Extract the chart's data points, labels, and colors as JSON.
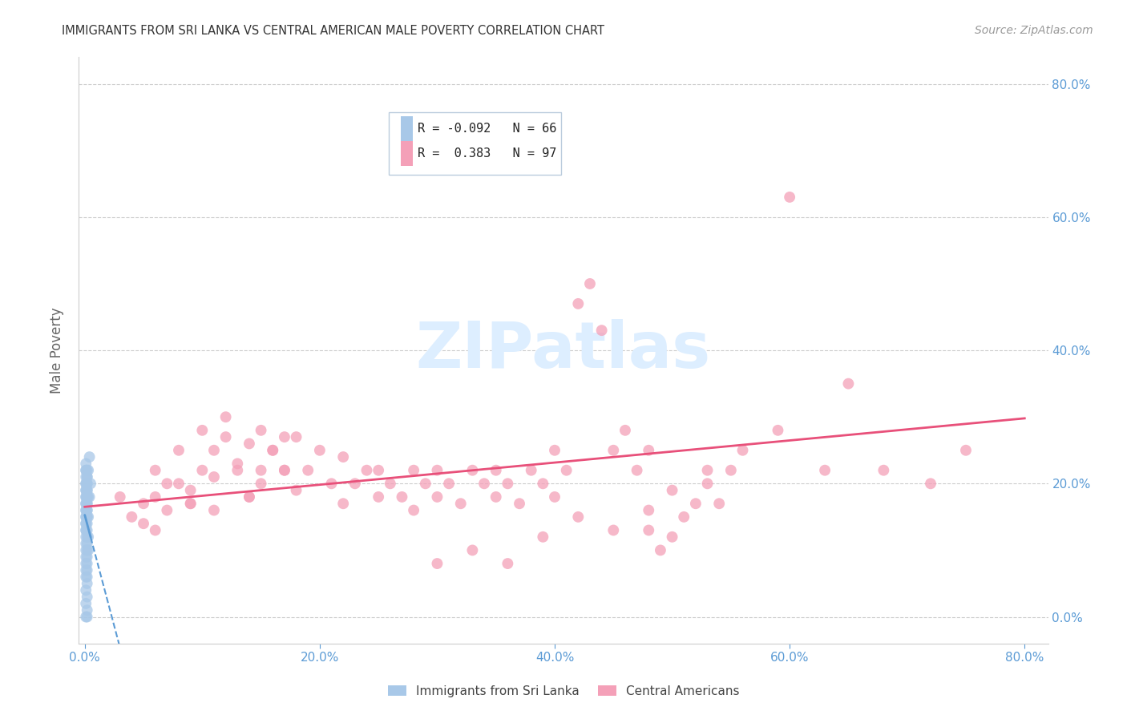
{
  "title": "IMMIGRANTS FROM SRI LANKA VS CENTRAL AMERICAN MALE POVERTY CORRELATION CHART",
  "source": "Source: ZipAtlas.com",
  "ylabel_left": "Male Poverty",
  "x_tick_labels": [
    "0.0%",
    "20.0%",
    "40.0%",
    "60.0%",
    "80.0%"
  ],
  "x_tick_vals": [
    0.0,
    0.2,
    0.4,
    0.6,
    0.8
  ],
  "y_tick_vals": [
    0.0,
    0.2,
    0.4,
    0.6,
    0.8
  ],
  "y_tick_labels": [
    "0.0%",
    "20.0%",
    "40.0%",
    "60.0%",
    "80.0%"
  ],
  "xlim": [
    -0.005,
    0.82
  ],
  "ylim": [
    -0.04,
    0.84
  ],
  "sri_lanka_color": "#a8c8e8",
  "central_american_color": "#f4a0b8",
  "sri_lanka_R": -0.092,
  "sri_lanka_N": 66,
  "central_american_R": 0.383,
  "central_american_N": 97,
  "sri_lanka_label": "Immigrants from Sri Lanka",
  "central_american_label": "Central Americans",
  "background_color": "#ffffff",
  "grid_color": "#cccccc",
  "tick_color": "#5b9bd5",
  "source_color": "#999999",
  "watermark_color": "#ddeeff",
  "sri_lanka_trend_color": "#5b9bd5",
  "central_american_trend_color": "#e8507a",
  "sri_lanka_points": [
    [
      0.001,
      0.22
    ],
    [
      0.001,
      0.2
    ],
    [
      0.001,
      0.19
    ],
    [
      0.002,
      0.21
    ],
    [
      0.001,
      0.18
    ],
    [
      0.002,
      0.2
    ],
    [
      0.001,
      0.17
    ],
    [
      0.002,
      0.19
    ],
    [
      0.001,
      0.16
    ],
    [
      0.002,
      0.18
    ],
    [
      0.001,
      0.15
    ],
    [
      0.002,
      0.17
    ],
    [
      0.001,
      0.14
    ],
    [
      0.002,
      0.16
    ],
    [
      0.001,
      0.13
    ],
    [
      0.002,
      0.15
    ],
    [
      0.001,
      0.22
    ],
    [
      0.002,
      0.21
    ],
    [
      0.001,
      0.23
    ],
    [
      0.002,
      0.22
    ],
    [
      0.001,
      0.2
    ],
    [
      0.002,
      0.19
    ],
    [
      0.001,
      0.18
    ],
    [
      0.002,
      0.17
    ],
    [
      0.001,
      0.16
    ],
    [
      0.002,
      0.15
    ],
    [
      0.001,
      0.14
    ],
    [
      0.002,
      0.13
    ],
    [
      0.001,
      0.12
    ],
    [
      0.002,
      0.11
    ],
    [
      0.001,
      0.1
    ],
    [
      0.002,
      0.09
    ],
    [
      0.001,
      0.08
    ],
    [
      0.002,
      0.07
    ],
    [
      0.001,
      0.06
    ],
    [
      0.002,
      0.05
    ],
    [
      0.001,
      0.04
    ],
    [
      0.002,
      0.03
    ],
    [
      0.001,
      0.02
    ],
    [
      0.002,
      0.01
    ],
    [
      0.001,
      0.0
    ],
    [
      0.002,
      0.0
    ],
    [
      0.001,
      0.19
    ],
    [
      0.002,
      0.2
    ],
    [
      0.001,
      0.21
    ],
    [
      0.002,
      0.18
    ],
    [
      0.001,
      0.17
    ],
    [
      0.002,
      0.16
    ],
    [
      0.001,
      0.15
    ],
    [
      0.002,
      0.14
    ],
    [
      0.001,
      0.13
    ],
    [
      0.002,
      0.12
    ],
    [
      0.001,
      0.11
    ],
    [
      0.002,
      0.1
    ],
    [
      0.001,
      0.09
    ],
    [
      0.002,
      0.08
    ],
    [
      0.001,
      0.07
    ],
    [
      0.002,
      0.06
    ],
    [
      0.003,
      0.22
    ],
    [
      0.003,
      0.18
    ],
    [
      0.003,
      0.15
    ],
    [
      0.003,
      0.12
    ],
    [
      0.003,
      0.1
    ],
    [
      0.004,
      0.24
    ],
    [
      0.004,
      0.18
    ],
    [
      0.005,
      0.2
    ]
  ],
  "central_american_points": [
    [
      0.03,
      0.18
    ],
    [
      0.05,
      0.17
    ],
    [
      0.06,
      0.22
    ],
    [
      0.07,
      0.2
    ],
    [
      0.08,
      0.25
    ],
    [
      0.04,
      0.15
    ],
    [
      0.06,
      0.18
    ],
    [
      0.08,
      0.2
    ],
    [
      0.09,
      0.17
    ],
    [
      0.1,
      0.22
    ],
    [
      0.1,
      0.28
    ],
    [
      0.11,
      0.25
    ],
    [
      0.12,
      0.27
    ],
    [
      0.05,
      0.14
    ],
    [
      0.07,
      0.16
    ],
    [
      0.09,
      0.19
    ],
    [
      0.11,
      0.21
    ],
    [
      0.13,
      0.23
    ],
    [
      0.14,
      0.26
    ],
    [
      0.15,
      0.22
    ],
    [
      0.15,
      0.28
    ],
    [
      0.16,
      0.25
    ],
    [
      0.17,
      0.27
    ],
    [
      0.12,
      0.3
    ],
    [
      0.13,
      0.22
    ],
    [
      0.14,
      0.18
    ],
    [
      0.15,
      0.2
    ],
    [
      0.16,
      0.25
    ],
    [
      0.17,
      0.22
    ],
    [
      0.18,
      0.27
    ],
    [
      0.06,
      0.13
    ],
    [
      0.09,
      0.17
    ],
    [
      0.11,
      0.16
    ],
    [
      0.14,
      0.18
    ],
    [
      0.17,
      0.22
    ],
    [
      0.18,
      0.19
    ],
    [
      0.19,
      0.22
    ],
    [
      0.2,
      0.25
    ],
    [
      0.21,
      0.2
    ],
    [
      0.22,
      0.17
    ],
    [
      0.22,
      0.24
    ],
    [
      0.23,
      0.2
    ],
    [
      0.24,
      0.22
    ],
    [
      0.25,
      0.18
    ],
    [
      0.25,
      0.22
    ],
    [
      0.26,
      0.2
    ],
    [
      0.27,
      0.18
    ],
    [
      0.28,
      0.22
    ],
    [
      0.28,
      0.16
    ],
    [
      0.29,
      0.2
    ],
    [
      0.3,
      0.18
    ],
    [
      0.3,
      0.22
    ],
    [
      0.31,
      0.2
    ],
    [
      0.32,
      0.17
    ],
    [
      0.33,
      0.22
    ],
    [
      0.34,
      0.2
    ],
    [
      0.35,
      0.18
    ],
    [
      0.35,
      0.22
    ],
    [
      0.36,
      0.2
    ],
    [
      0.37,
      0.17
    ],
    [
      0.38,
      0.22
    ],
    [
      0.39,
      0.2
    ],
    [
      0.4,
      0.18
    ],
    [
      0.4,
      0.25
    ],
    [
      0.41,
      0.22
    ],
    [
      0.42,
      0.47
    ],
    [
      0.43,
      0.5
    ],
    [
      0.44,
      0.43
    ],
    [
      0.45,
      0.25
    ],
    [
      0.46,
      0.28
    ],
    [
      0.47,
      0.22
    ],
    [
      0.48,
      0.25
    ],
    [
      0.48,
      0.13
    ],
    [
      0.49,
      0.1
    ],
    [
      0.5,
      0.12
    ],
    [
      0.51,
      0.15
    ],
    [
      0.52,
      0.17
    ],
    [
      0.53,
      0.2
    ],
    [
      0.54,
      0.17
    ],
    [
      0.55,
      0.22
    ],
    [
      0.3,
      0.08
    ],
    [
      0.33,
      0.1
    ],
    [
      0.36,
      0.08
    ],
    [
      0.39,
      0.12
    ],
    [
      0.42,
      0.15
    ],
    [
      0.45,
      0.13
    ],
    [
      0.48,
      0.16
    ],
    [
      0.5,
      0.19
    ],
    [
      0.53,
      0.22
    ],
    [
      0.56,
      0.25
    ],
    [
      0.59,
      0.28
    ],
    [
      0.6,
      0.63
    ],
    [
      0.63,
      0.22
    ],
    [
      0.65,
      0.35
    ],
    [
      0.68,
      0.22
    ],
    [
      0.72,
      0.2
    ],
    [
      0.75,
      0.25
    ]
  ]
}
